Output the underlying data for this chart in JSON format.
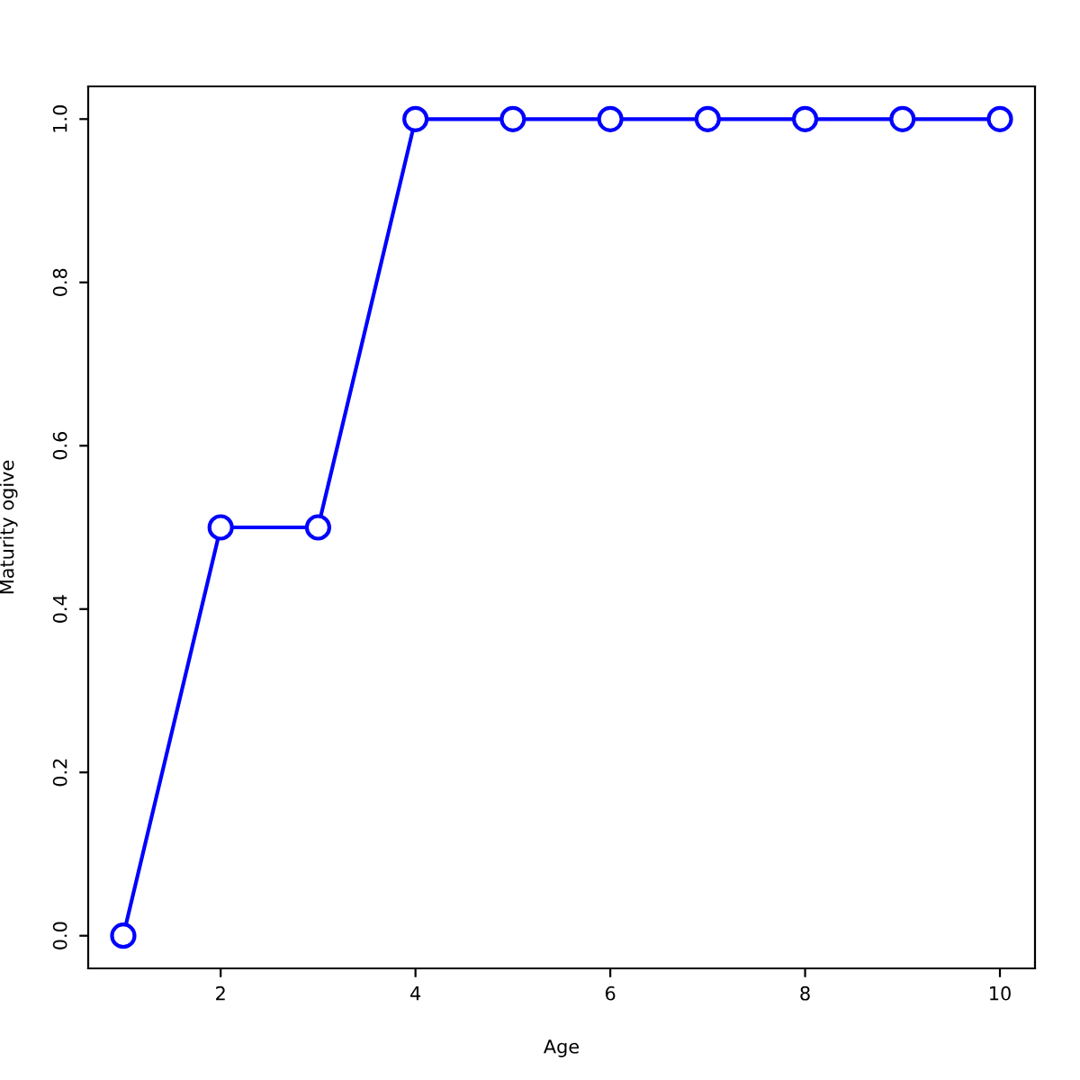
{
  "chart_data": {
    "type": "line",
    "xlabel": "Age",
    "ylabel": "Maturity ogive",
    "x": [
      1,
      2,
      3,
      4,
      5,
      6,
      7,
      8,
      9,
      10
    ],
    "series": [
      {
        "color": "#0000ff",
        "values": [
          0,
          0.5,
          0.5,
          1,
          1,
          1,
          1,
          1,
          1,
          1
        ]
      }
    ],
    "xlim": [
      0.64,
      10.36
    ],
    "ylim": [
      -0.04,
      1.04
    ],
    "xticks": [
      2,
      4,
      6,
      8,
      10
    ],
    "yticks": [
      {
        "value": 0,
        "label": "0.0"
      },
      {
        "value": 0.2,
        "label": "0.2"
      },
      {
        "value": 0.4,
        "label": "0.4"
      },
      {
        "value": 0.6,
        "label": "0.6"
      },
      {
        "value": 0.8,
        "label": "0.8"
      },
      {
        "value": 1,
        "label": "1.0"
      }
    ],
    "marker": "circle",
    "line_style": "solid",
    "grid": false,
    "legend": false
  }
}
